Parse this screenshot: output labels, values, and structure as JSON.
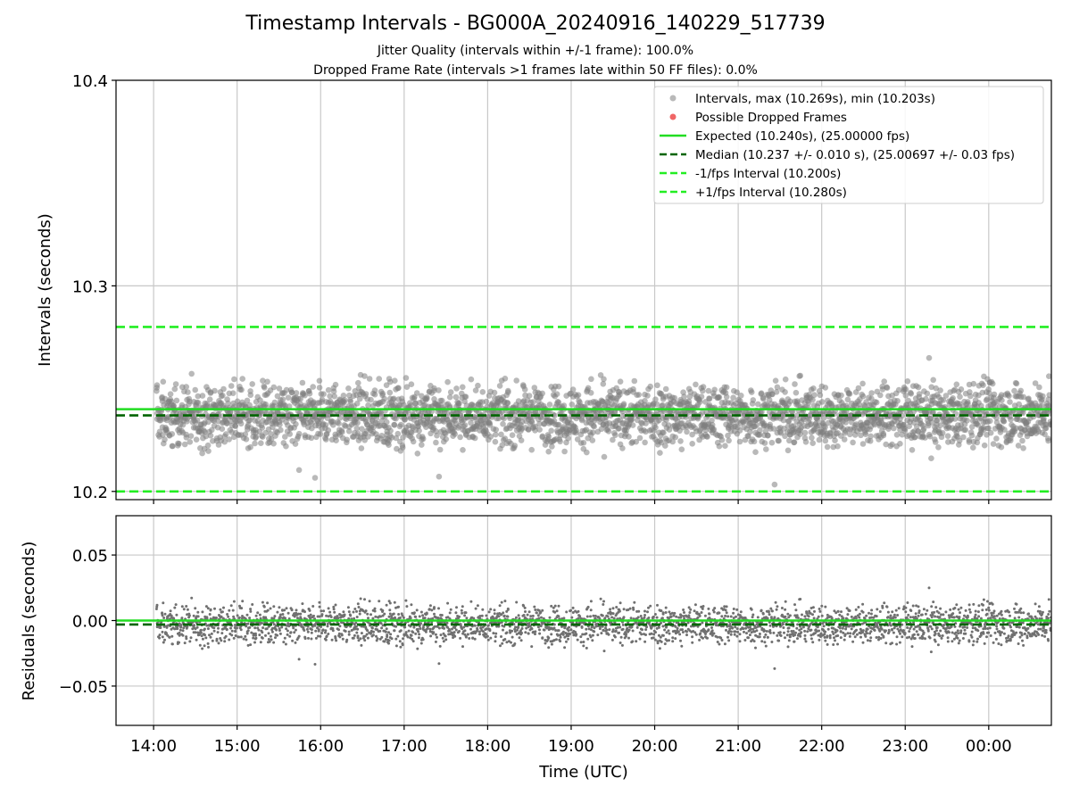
{
  "header": {
    "title": "Timestamp Intervals - BG000A_20240916_140229_517739",
    "subtitle1": "Jitter Quality (intervals within +/-1 frame): 100.0%",
    "subtitle2": "Dropped Frame Rate (intervals >1 frames late within 50 FF files): 0.0%"
  },
  "chart_data": [
    {
      "type": "scatter",
      "panel": "intervals",
      "ylabel": "Intervals (seconds)",
      "ylim": [
        10.196,
        10.4
      ],
      "yticks": [
        10.2,
        10.3,
        10.4
      ],
      "ytick_labels": [
        "10.2",
        "10.3",
        "10.4"
      ],
      "xlim_hours": [
        13.55,
        24.75
      ],
      "grid": true,
      "legend_position": "top-right",
      "scatter_summary": {
        "name": "Intervals, max (10.269s), min (10.203s)",
        "x_start": "14:02",
        "x_end": "00:45",
        "max": 10.269,
        "min": 10.203,
        "typical_band": [
          10.215,
          10.259
        ],
        "center": 10.237,
        "color": "#808080"
      },
      "dropped_frames": {
        "name": "Possible Dropped Frames",
        "count": 0,
        "color": "#ee5555"
      },
      "reference_lines": [
        {
          "name": "Expected (10.240s), (25.00000 fps)",
          "y": 10.24,
          "style": "solid",
          "color": "#22dd22"
        },
        {
          "name": "Median (10.237 +/- 0.010 s), (25.00697 +/- 0.03 fps)",
          "y": 10.237,
          "style": "dashed",
          "color": "#006400"
        },
        {
          "name": "-1/fps Interval (10.200s)",
          "y": 10.2,
          "style": "dashed",
          "color": "#22ee22"
        },
        {
          "name": "+1/fps Interval (10.280s)",
          "y": 10.28,
          "style": "dashed",
          "color": "#22ee22"
        }
      ]
    },
    {
      "type": "scatter",
      "panel": "residuals",
      "xlabel": "Time (UTC)",
      "ylabel": "Residuals (seconds)",
      "ylim": [
        -0.08,
        0.08
      ],
      "yticks": [
        0.05,
        0.0,
        -0.05
      ],
      "ytick_labels": [
        "0.05",
        "0.00",
        "−0.05"
      ],
      "x_ticks": [
        "14:00",
        "15:00",
        "16:00",
        "17:00",
        "18:00",
        "19:00",
        "20:00",
        "21:00",
        "22:00",
        "23:00",
        "00:00"
      ],
      "x_tick_hours": [
        14,
        15,
        16,
        17,
        18,
        19,
        20,
        21,
        22,
        23,
        24
      ],
      "grid": true,
      "scatter_summary": {
        "x_start": "14:02",
        "x_end": "00:45",
        "max": 0.029,
        "min": -0.037,
        "typical_band": [
          -0.025,
          0.02
        ],
        "color": "#707070"
      },
      "reference_lines": [
        {
          "y": 0.0,
          "style": "solid",
          "color": "#22dd22"
        },
        {
          "y": -0.003,
          "style": "dashed",
          "color": "#006400"
        }
      ]
    }
  ]
}
